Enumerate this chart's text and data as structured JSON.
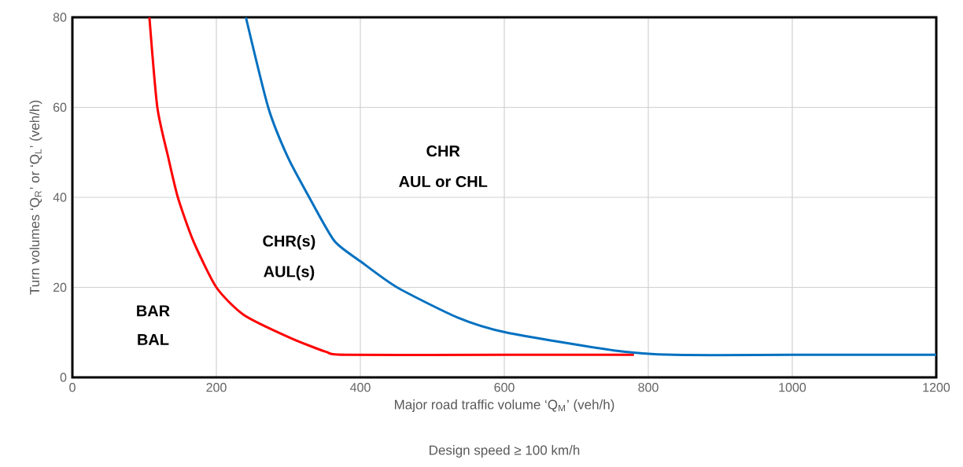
{
  "chart_data": {
    "type": "line",
    "xlabel": "Major road traffic volume ‘Q$_{M}$’ (veh/h)",
    "ylabel": "Turn volumes ‘Q$_{R}$’ or ‘Q$_{L}$’ (veh/h)",
    "xlim": [
      0,
      1200
    ],
    "ylim": [
      0,
      80
    ],
    "xticks": [
      0,
      200,
      400,
      600,
      800,
      1000,
      1200
    ],
    "yticks": [
      0,
      20,
      40,
      60,
      80
    ],
    "grid": true,
    "marker": "none",
    "line_style": "solid",
    "series": [
      {
        "color": "#ff0000",
        "x": [
          107,
          118,
          133,
          146.5,
          168,
          200,
          238,
          301,
          352,
          380,
          600,
          780
        ],
        "values": [
          80,
          60,
          49,
          40,
          30.3,
          20,
          13.9,
          8.9,
          5.7,
          5,
          5,
          5
        ]
      },
      {
        "color": "#0070c0",
        "x": [
          241,
          272,
          299,
          329,
          364,
          400,
          451,
          535,
          602,
          752,
          836,
          1000,
          1200
        ],
        "values": [
          80,
          60,
          49,
          40,
          30.3,
          25.8,
          20,
          13.3,
          10,
          6,
          5,
          5,
          5
        ]
      }
    ],
    "annotations": [
      "BAR",
      "BAL",
      "CHR(s)",
      "AUL(s)",
      "CHR",
      "AUL or CHL",
      "Design speed ≥ 100 km/h"
    ]
  }
}
